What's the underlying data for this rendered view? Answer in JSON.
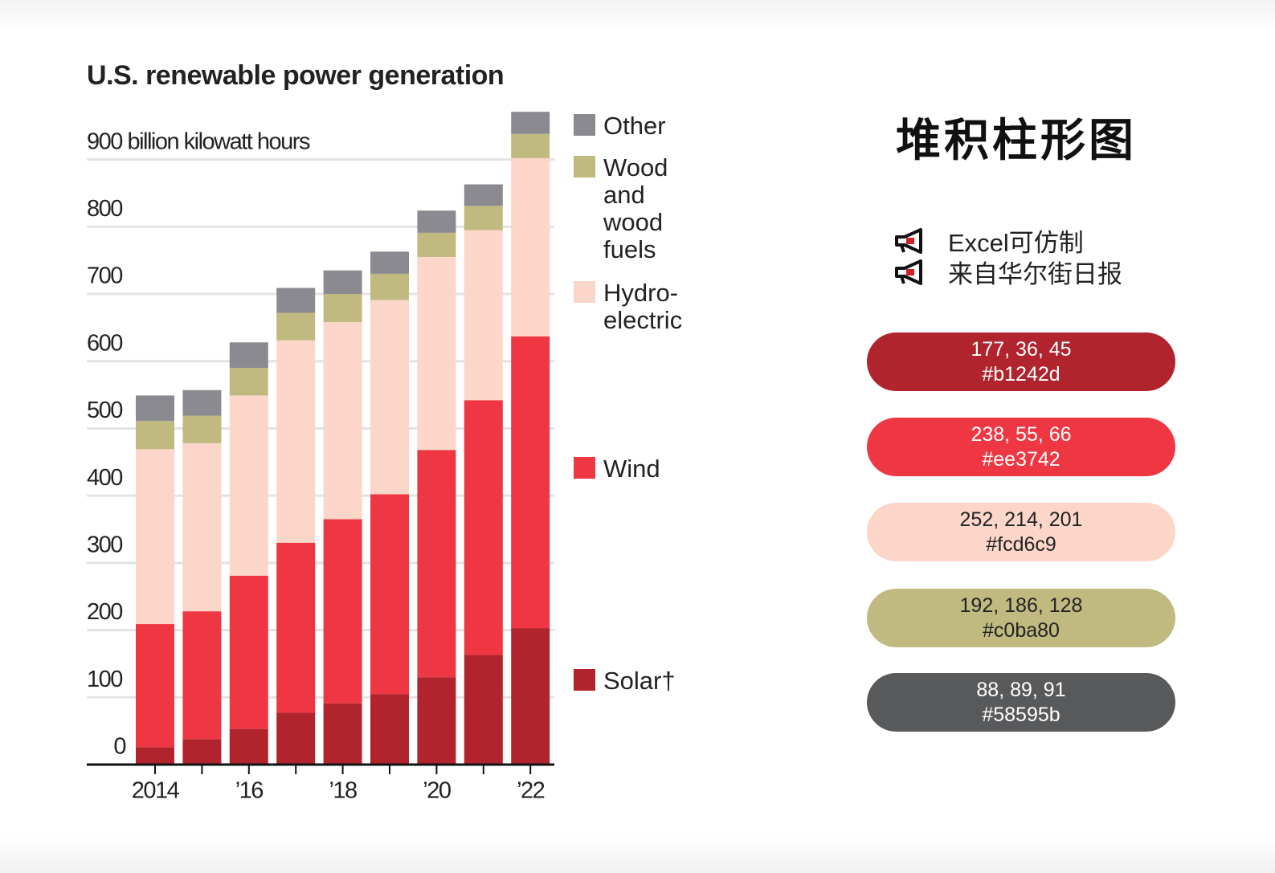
{
  "chart_data": {
    "type": "bar",
    "stacked": true,
    "title": "U.S. renewable power generation",
    "categories": [
      "2014",
      null,
      "’16",
      null,
      "’18",
      null,
      "’20",
      null,
      "’22"
    ],
    "series": [
      {
        "name": "Solar†",
        "color": "#b1242d",
        "values": [
          26,
          38,
          53,
          77,
          91,
          105,
          130,
          163,
          203
        ]
      },
      {
        "name": "Wind",
        "color": "#ee3742",
        "values": [
          183,
          190,
          228,
          253,
          274,
          297,
          338,
          379,
          434
        ]
      },
      {
        "name": "Hydro-electric",
        "color": "#fcd6c9",
        "values": [
          260,
          250,
          268,
          301,
          293,
          289,
          287,
          253,
          265
        ]
      },
      {
        "name": "Wood and wood fuels",
        "color": "#c0ba80",
        "values": [
          42,
          41,
          41,
          41,
          42,
          39,
          36,
          36,
          36
        ]
      },
      {
        "name": "Other",
        "color": "#8b8a90",
        "values": [
          38,
          38,
          38,
          37,
          35,
          33,
          33,
          32,
          33
        ]
      }
    ],
    "ylim": [
      0,
      970
    ],
    "yticks": [
      0,
      100,
      200,
      300,
      400,
      500,
      600,
      700,
      800,
      {
        "value": 900,
        "label": "900 billion kilowatt hours"
      }
    ],
    "grid": true
  },
  "panel": {
    "title": "堆积柱形图",
    "notes": [
      "Excel可仿制",
      "来自华尔街日报"
    ],
    "swatches": [
      {
        "rgb": "177, 36, 45",
        "hex": "#b1242d",
        "color": "#b1242d"
      },
      {
        "rgb": "238, 55, 66",
        "hex": "#ee3742",
        "color": "#ee3742"
      },
      {
        "rgb": "252, 214, 201",
        "hex": "#fcd6c9",
        "color": "#fcd6c9"
      },
      {
        "rgb": "192, 186, 128",
        "hex": "#c0ba80",
        "color": "#c0ba80"
      },
      {
        "rgb": "88, 89, 91",
        "hex": "#58595b",
        "color": "#58595b"
      }
    ]
  }
}
